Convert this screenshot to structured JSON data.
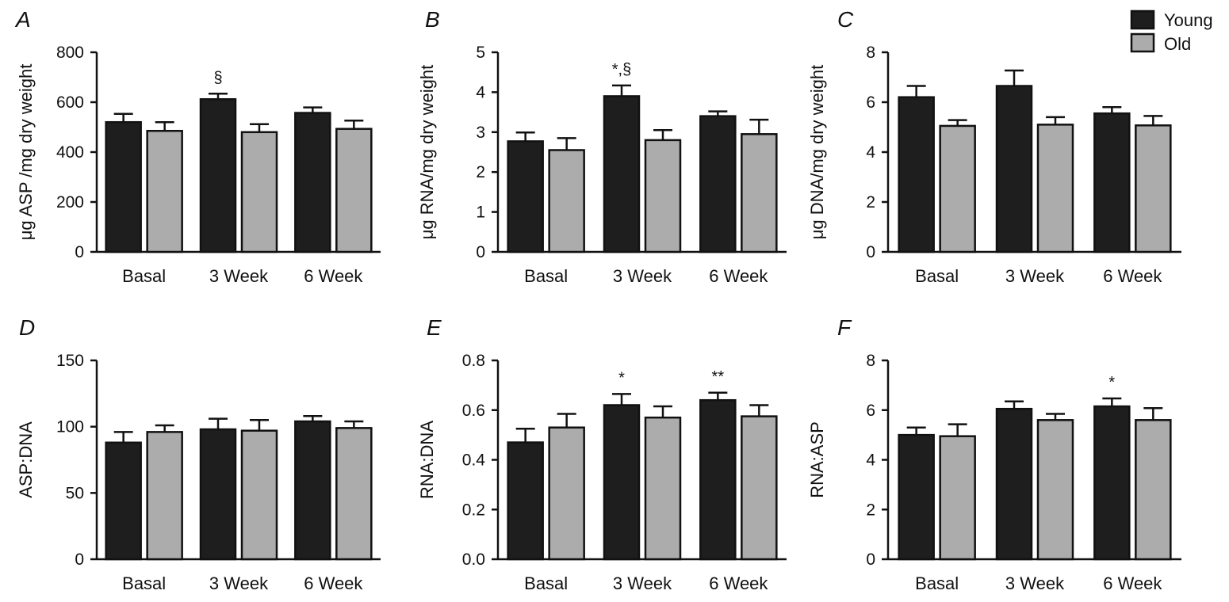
{
  "legend": {
    "entries": [
      {
        "name": "Young",
        "color": "#1e1e1e"
      },
      {
        "name": "Old",
        "color": "#acacac"
      }
    ],
    "placement": "top-right"
  },
  "chart_data": [
    {
      "panel": "A",
      "type": "bar",
      "categories": [
        "Basal",
        "3 Week",
        "6 Week"
      ],
      "ylabel": "μg ASP /mg dry weight",
      "ylim": [
        0,
        800
      ],
      "yticks": [
        "0",
        "200",
        "400",
        "600",
        "800"
      ],
      "series": [
        {
          "name": "Young",
          "values": [
            520,
            612,
            557
          ],
          "errors": [
            33,
            22,
            22
          ]
        },
        {
          "name": "Old",
          "values": [
            485,
            480,
            493
          ],
          "errors": [
            35,
            32,
            33
          ]
        }
      ],
      "annotations": [
        {
          "category": 1,
          "series": 0,
          "text": "§"
        }
      ]
    },
    {
      "panel": "B",
      "type": "bar",
      "categories": [
        "Basal",
        "3 Week",
        "6 Week"
      ],
      "ylabel": "μg RNA/mg dry weight",
      "ylim": [
        0,
        5
      ],
      "yticks": [
        "0",
        "1",
        "2",
        "3",
        "4",
        "5"
      ],
      "series": [
        {
          "name": "Young",
          "values": [
            2.77,
            3.9,
            3.4
          ],
          "errors": [
            0.22,
            0.27,
            0.12
          ]
        },
        {
          "name": "Old",
          "values": [
            2.55,
            2.8,
            2.95
          ],
          "errors": [
            0.3,
            0.25,
            0.36
          ]
        }
      ],
      "annotations": [
        {
          "category": 1,
          "series": 0,
          "text": "*,§"
        }
      ]
    },
    {
      "panel": "C",
      "type": "bar",
      "categories": [
        "Basal",
        "3 Week",
        "6 Week"
      ],
      "ylabel": "μg DNA/mg dry weight",
      "ylim": [
        0,
        8
      ],
      "yticks": [
        "0",
        "2",
        "4",
        "6",
        "8"
      ],
      "series": [
        {
          "name": "Young",
          "values": [
            6.2,
            6.65,
            5.55
          ],
          "errors": [
            0.45,
            0.62,
            0.25
          ]
        },
        {
          "name": "Old",
          "values": [
            5.05,
            5.1,
            5.07
          ],
          "errors": [
            0.23,
            0.3,
            0.38
          ]
        }
      ],
      "annotations": []
    },
    {
      "panel": "D",
      "type": "bar",
      "categories": [
        "Basal",
        "3 Week",
        "6 Week"
      ],
      "ylabel": "ASP:DNA",
      "ylim": [
        0,
        150
      ],
      "yticks": [
        "0",
        "50",
        "100",
        "150"
      ],
      "series": [
        {
          "name": "Young",
          "values": [
            88,
            98,
            104
          ],
          "errors": [
            8,
            8,
            4
          ]
        },
        {
          "name": "Old",
          "values": [
            96,
            97,
            99
          ],
          "errors": [
            5,
            8,
            5
          ]
        }
      ],
      "annotations": []
    },
    {
      "panel": "E",
      "type": "bar",
      "categories": [
        "Basal",
        "3 Week",
        "6 Week"
      ],
      "ylabel": "RNA:DNA",
      "ylim": [
        0,
        0.8
      ],
      "yticks": [
        "0.0",
        "0.2",
        "0.4",
        "0.6",
        "0.8"
      ],
      "series": [
        {
          "name": "Young",
          "values": [
            0.47,
            0.62,
            0.64
          ],
          "errors": [
            0.055,
            0.045,
            0.03
          ]
        },
        {
          "name": "Old",
          "values": [
            0.53,
            0.57,
            0.575
          ],
          "errors": [
            0.055,
            0.045,
            0.045
          ]
        }
      ],
      "annotations": [
        {
          "category": 1,
          "series": 0,
          "text": "*"
        },
        {
          "category": 2,
          "series": 0,
          "text": "**"
        }
      ]
    },
    {
      "panel": "F",
      "type": "bar",
      "categories": [
        "Basal",
        "3 Week",
        "6 Week"
      ],
      "ylabel": "RNA:ASP",
      "ylim": [
        0,
        8
      ],
      "yticks": [
        "0",
        "2",
        "4",
        "6",
        "8"
      ],
      "series": [
        {
          "name": "Young",
          "values": [
            5.0,
            6.05,
            6.15
          ],
          "errors": [
            0.3,
            0.3,
            0.32
          ]
        },
        {
          "name": "Old",
          "values": [
            4.95,
            5.6,
            5.6
          ],
          "errors": [
            0.48,
            0.25,
            0.48
          ]
        }
      ],
      "annotations": [
        {
          "category": 2,
          "series": 0,
          "text": "*"
        }
      ]
    }
  ]
}
